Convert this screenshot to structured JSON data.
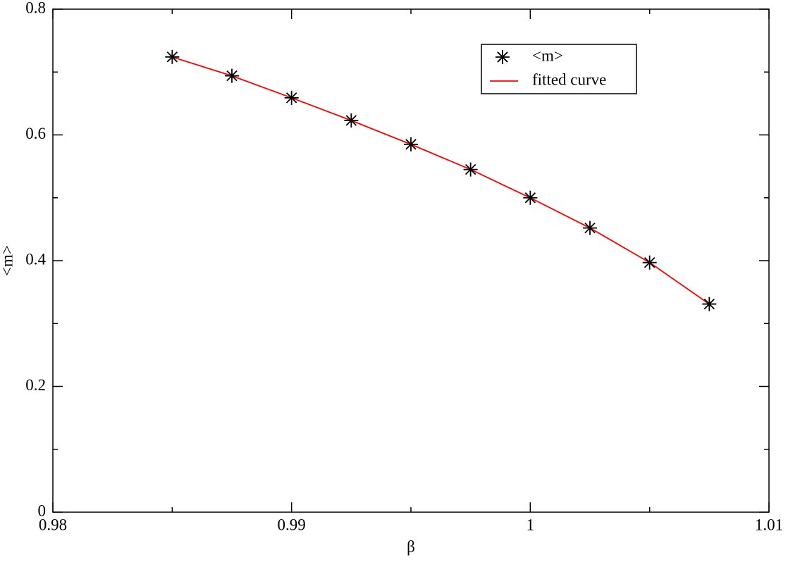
{
  "chart_data": {
    "type": "scatter",
    "x_label": "β",
    "y_label": "<m>",
    "series": [
      {
        "name": "<m>",
        "marker": "star",
        "color": "#000000",
        "x": [
          0.985,
          0.9875,
          0.99,
          0.9925,
          0.995,
          0.9975,
          1.0,
          1.0025,
          1.005,
          1.0075
        ],
        "values": [
          0.724,
          0.694,
          0.659,
          0.623,
          0.585,
          0.545,
          0.5,
          0.452,
          0.397,
          0.331
        ]
      },
      {
        "name": "fitted curve",
        "marker": "line",
        "color": "#ff0000",
        "x": [
          0.985,
          0.9875,
          0.99,
          0.9925,
          0.995,
          0.9975,
          1.0,
          1.0025,
          1.005,
          1.0075
        ],
        "values": [
          0.724,
          0.694,
          0.659,
          0.623,
          0.585,
          0.545,
          0.5,
          0.452,
          0.397,
          0.331
        ]
      }
    ],
    "xlim": [
      0.98,
      1.01
    ],
    "xticks": [
      0.98,
      0.99,
      1,
      1.01
    ],
    "xminorticks": [
      0.985,
      0.995,
      1.005
    ],
    "ylim": [
      0,
      0.8
    ],
    "yticks": [
      0,
      0.2,
      0.4,
      0.6,
      0.8
    ],
    "yminorticks": [
      0.1,
      0.3,
      0.5,
      0.7
    ],
    "legend": "top-right",
    "grid": false
  }
}
